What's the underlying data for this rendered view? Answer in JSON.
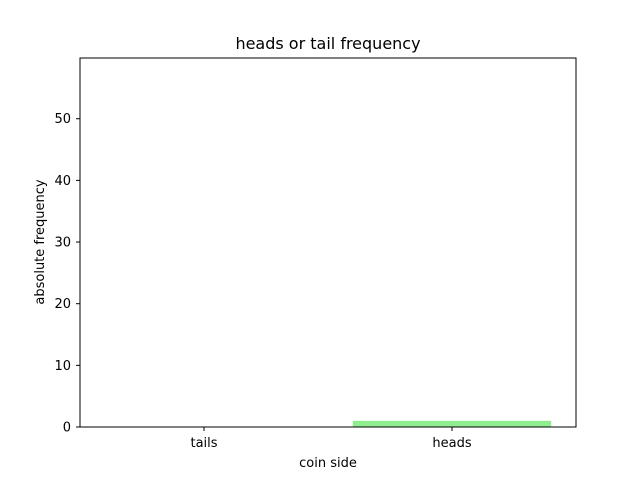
{
  "chart_data": {
    "type": "bar",
    "title": "heads or tail frequency",
    "xlabel": "coin side",
    "ylabel": "absolute frequency",
    "categories": [
      "tails",
      "heads"
    ],
    "values": [
      0,
      1
    ],
    "bar_colors": [
      "#90ee90",
      "#90ee90"
    ],
    "ylim": [
      0,
      59.85
    ],
    "yticks": [
      0,
      10,
      20,
      30,
      40,
      50
    ],
    "grid": false
  }
}
